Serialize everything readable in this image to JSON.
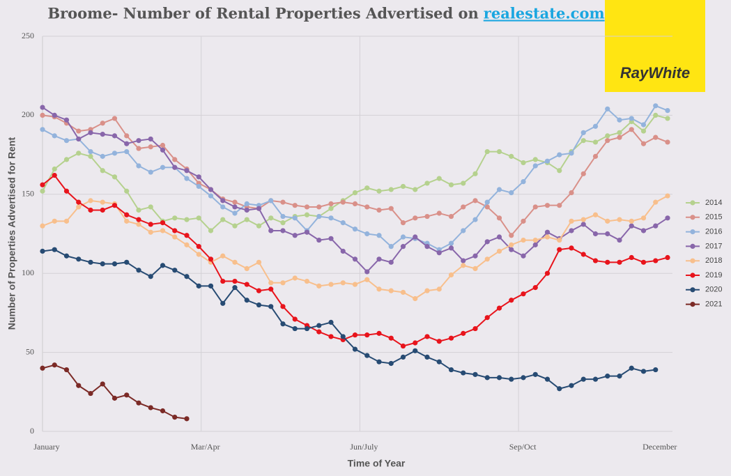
{
  "chart_data": {
    "type": "line",
    "title": "Broome- Number of Rental Properties Advertised on",
    "title_link": "realestate.com",
    "logo": "RayWhite",
    "xlabel": "Time of Year",
    "ylabel": "Number of Properties Advertised for Rent",
    "x": [
      0,
      1,
      2,
      3,
      4,
      5,
      6,
      7,
      8,
      9,
      10,
      11,
      12,
      13,
      14,
      15,
      16,
      17,
      18,
      19,
      20,
      21,
      22,
      23,
      24,
      25,
      26,
      27,
      28,
      29,
      30,
      31,
      32,
      33,
      34,
      35,
      36,
      37,
      38,
      39,
      40,
      41,
      42,
      43,
      44,
      45,
      46,
      47,
      48,
      49,
      50,
      51,
      52
    ],
    "xlim": [
      0,
      52
    ],
    "xticks": [
      {
        "value": 0,
        "label": "January"
      },
      {
        "value": 13.2,
        "label": "Mar/Apr"
      },
      {
        "value": 26.4,
        "label": "Jun/July"
      },
      {
        "value": 39.6,
        "label": "Sep/Oct"
      },
      {
        "value": 51,
        "label": "December"
      }
    ],
    "ylim": [
      0,
      250
    ],
    "yticks": [
      0,
      50,
      100,
      150,
      200,
      250
    ],
    "grid": true,
    "legend": "right",
    "series": [
      {
        "name": "2014",
        "color": "#b5d18e",
        "values": [
          152,
          166,
          172,
          176,
          174,
          165,
          161,
          152,
          140,
          142,
          133,
          135,
          134,
          135,
          127,
          134,
          130,
          134,
          130,
          135,
          132,
          136,
          137,
          136,
          141,
          146,
          151,
          154,
          152,
          153,
          155,
          153,
          157,
          160,
          156,
          157,
          163,
          177,
          177,
          174,
          170,
          172,
          170,
          165,
          177,
          184,
          183,
          187,
          189,
          196,
          190,
          200,
          198
        ]
      },
      {
        "name": "2015",
        "color": "#d99089",
        "values": [
          200,
          199,
          195,
          190,
          191,
          195,
          198,
          187,
          179,
          180,
          181,
          172,
          166,
          157,
          153,
          147,
          145,
          142,
          141,
          146,
          145,
          143,
          142,
          142,
          144,
          145,
          144,
          142,
          140,
          141,
          132,
          135,
          136,
          138,
          136,
          142,
          146,
          142,
          135,
          124,
          133,
          142,
          143,
          143,
          151,
          163,
          174,
          184,
          186,
          191,
          182,
          186,
          183
        ]
      },
      {
        "name": "2016",
        "color": "#93b3dc",
        "values": [
          191,
          187,
          184,
          185,
          177,
          174,
          176,
          177,
          168,
          164,
          167,
          167,
          160,
          155,
          149,
          142,
          138,
          144,
          143,
          146,
          136,
          135,
          127,
          136,
          135,
          132,
          128,
          125,
          124,
          117,
          123,
          122,
          119,
          115,
          119,
          127,
          134,
          145,
          153,
          151,
          158,
          168,
          171,
          175,
          176,
          189,
          193,
          204,
          197,
          198,
          194,
          206,
          203
        ]
      },
      {
        "name": "2017",
        "color": "#8866aa",
        "values": [
          205,
          200,
          197,
          185,
          189,
          188,
          187,
          182,
          184,
          185,
          178,
          167,
          165,
          161,
          153,
          146,
          142,
          140,
          141,
          127,
          127,
          124,
          126,
          121,
          122,
          114,
          109,
          101,
          109,
          107,
          117,
          123,
          117,
          113,
          116,
          108,
          111,
          120,
          123,
          115,
          111,
          118,
          126,
          122,
          127,
          131,
          125,
          125,
          121,
          130,
          127,
          130,
          135
        ]
      },
      {
        "name": "2018",
        "color": "#f8bf8c",
        "values": [
          130,
          133,
          133,
          142,
          146,
          145,
          144,
          133,
          131,
          126,
          127,
          123,
          118,
          112,
          107,
          111,
          107,
          103,
          107,
          94,
          94,
          97,
          95,
          92,
          93,
          94,
          93,
          96,
          90,
          89,
          88,
          84,
          89,
          90,
          99,
          105,
          103,
          109,
          114,
          118,
          121,
          121,
          123,
          121,
          133,
          134,
          137,
          133,
          134,
          133,
          135,
          145,
          149
        ]
      },
      {
        "name": "2019",
        "color": "#e8141c",
        "values": [
          156,
          162,
          152,
          145,
          140,
          140,
          143,
          137,
          134,
          131,
          132,
          127,
          124,
          117,
          109,
          95,
          95,
          93,
          89,
          90,
          79,
          71,
          67,
          63,
          60,
          58,
          61,
          61,
          62,
          59,
          54,
          56,
          60,
          57,
          59,
          62,
          65,
          72,
          78,
          83,
          87,
          91,
          100,
          115,
          116,
          112,
          108,
          107,
          107,
          110,
          107,
          108,
          110
        ]
      },
      {
        "name": "2020",
        "color": "#274b73",
        "values": [
          114,
          115,
          111,
          109,
          107,
          106,
          106,
          107,
          102,
          98,
          105,
          102,
          98,
          92,
          92,
          81,
          91,
          83,
          80,
          79,
          68,
          65,
          65,
          67,
          69,
          60,
          52,
          48,
          44,
          43,
          47,
          51,
          47,
          44,
          39,
          37,
          36,
          34,
          34,
          33,
          34,
          36,
          33,
          27,
          29,
          33,
          33,
          35,
          35,
          40,
          38,
          39,
          null
        ]
      },
      {
        "name": "2021",
        "color": "#7b2a26",
        "values": [
          40,
          42,
          39,
          29,
          24,
          30,
          21,
          23,
          18,
          15,
          13,
          9,
          8,
          null,
          null,
          null,
          null,
          null,
          null,
          null,
          null,
          null,
          null,
          null,
          null,
          null,
          null,
          null,
          null,
          null,
          null,
          null,
          null,
          null,
          null,
          null,
          null,
          null,
          null,
          null,
          null,
          null,
          null,
          null,
          null,
          null,
          null,
          null,
          null,
          null,
          null,
          null,
          null
        ]
      }
    ]
  }
}
